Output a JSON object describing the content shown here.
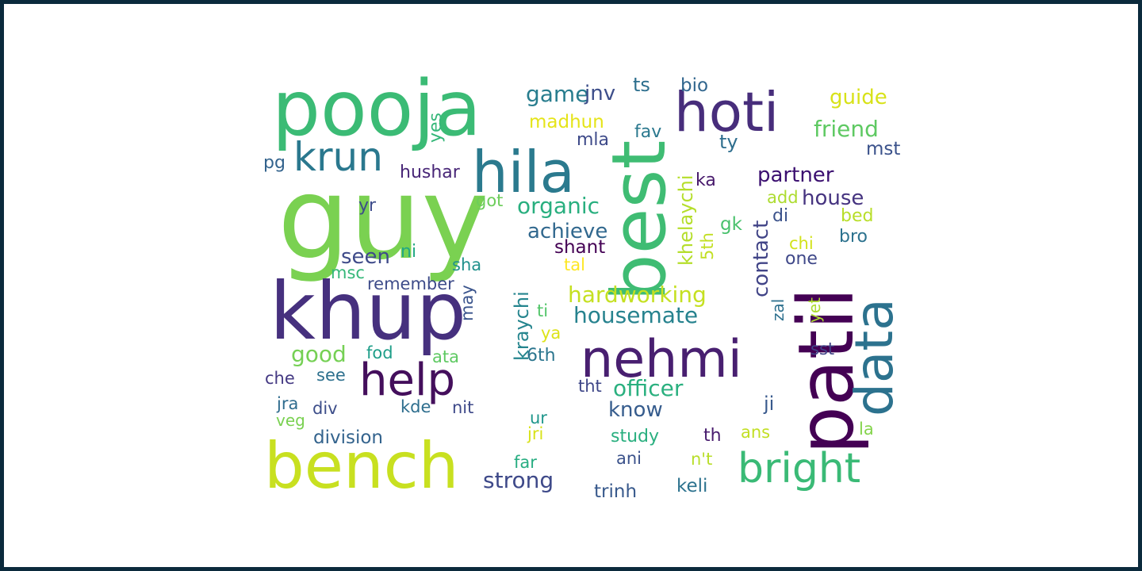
{
  "wordcloud": {
    "background": "#ffffff",
    "frame_color": "#0b2a3c",
    "words": [
      {
        "text": "guy",
        "color": "#7ad151"
      },
      {
        "text": "pooja",
        "color": "#3bbb75"
      },
      {
        "text": "khup",
        "color": "#46307e"
      },
      {
        "text": "best",
        "color": "#3fbc73"
      },
      {
        "text": "patil",
        "color": "#440154"
      },
      {
        "text": "bench",
        "color": "#c8e020"
      },
      {
        "text": "hila",
        "color": "#2b7a8e"
      },
      {
        "text": "hoti",
        "color": "#472d7b"
      },
      {
        "text": "nehmi",
        "color": "#481f70"
      },
      {
        "text": "data",
        "color": "#2c728e"
      },
      {
        "text": "krun",
        "color": "#2a788e"
      },
      {
        "text": "help",
        "color": "#440f5c"
      },
      {
        "text": "bright",
        "color": "#3aba76"
      },
      {
        "text": "game",
        "color": "#287d8e"
      },
      {
        "text": "jnv",
        "color": "#3d4e8a"
      },
      {
        "text": "ts",
        "color": "#2d6f8e"
      },
      {
        "text": "bio",
        "color": "#31668e"
      },
      {
        "text": "guide",
        "color": "#d8e219"
      },
      {
        "text": "madhun",
        "color": "#e5e419"
      },
      {
        "text": "friend",
        "color": "#5ec962"
      },
      {
        "text": "fav",
        "color": "#2a788e"
      },
      {
        "text": "mla",
        "color": "#3e4a89"
      },
      {
        "text": "ty",
        "color": "#2e6e8e"
      },
      {
        "text": "mst",
        "color": "#3b528b"
      },
      {
        "text": "yes",
        "color": "#35b779"
      },
      {
        "text": "pg",
        "color": "#33638d"
      },
      {
        "text": "hushar",
        "color": "#482677"
      },
      {
        "text": "khelaychi",
        "color": "#b5de2b"
      },
      {
        "text": "ka",
        "color": "#481a6c"
      },
      {
        "text": "partner",
        "color": "#3b0f70"
      },
      {
        "text": "organic",
        "color": "#29af7f"
      },
      {
        "text": "add",
        "color": "#addc30"
      },
      {
        "text": "house",
        "color": "#463480"
      },
      {
        "text": "yr",
        "color": "#3d4d8a"
      },
      {
        "text": "got",
        "color": "#6ccd5a"
      },
      {
        "text": "achieve",
        "color": "#31688e"
      },
      {
        "text": "contact",
        "color": "#414487"
      },
      {
        "text": "gk",
        "color": "#4ac16d"
      },
      {
        "text": "di",
        "color": "#3b528b"
      },
      {
        "text": "bed",
        "color": "#b8de29"
      },
      {
        "text": "bro",
        "color": "#2c728e"
      },
      {
        "text": "chi",
        "color": "#d2e21b"
      },
      {
        "text": "ni",
        "color": "#22a884"
      },
      {
        "text": "seen",
        "color": "#3e4a89"
      },
      {
        "text": "shant",
        "color": "#440154"
      },
      {
        "text": "5th",
        "color": "#c2df23"
      },
      {
        "text": "one",
        "color": "#3f4889"
      },
      {
        "text": "tal",
        "color": "#fde725"
      },
      {
        "text": "sha",
        "color": "#21918c"
      },
      {
        "text": "msc",
        "color": "#35b779"
      },
      {
        "text": "kraychi",
        "color": "#25858e"
      },
      {
        "text": "remember",
        "color": "#3e4c8a"
      },
      {
        "text": "hardworking",
        "color": "#c5e021"
      },
      {
        "text": "may",
        "color": "#3a548c"
      },
      {
        "text": "zal",
        "color": "#2d708e"
      },
      {
        "text": "yet",
        "color": "#addc30"
      },
      {
        "text": "housemate",
        "color": "#26828e"
      },
      {
        "text": "ti",
        "color": "#52c569"
      },
      {
        "text": "ya",
        "color": "#dde318"
      },
      {
        "text": "good",
        "color": "#75d054"
      },
      {
        "text": "fod",
        "color": "#1f9e89"
      },
      {
        "text": "ata",
        "color": "#5ec962"
      },
      {
        "text": "6th",
        "color": "#2b758e"
      },
      {
        "text": "sst",
        "color": "#414487"
      },
      {
        "text": "che",
        "color": "#443983"
      },
      {
        "text": "see",
        "color": "#2d708e"
      },
      {
        "text": "tht",
        "color": "#3f4788"
      },
      {
        "text": "officer",
        "color": "#2ab07f"
      },
      {
        "text": "ji",
        "color": "#38598c"
      },
      {
        "text": "jra",
        "color": "#2f6c8e"
      },
      {
        "text": "div",
        "color": "#3d4e8a"
      },
      {
        "text": "kde",
        "color": "#2e6e8e"
      },
      {
        "text": "nit",
        "color": "#3e4989"
      },
      {
        "text": "know",
        "color": "#365c8d"
      },
      {
        "text": "veg",
        "color": "#7ad151"
      },
      {
        "text": "ur",
        "color": "#1f968b"
      },
      {
        "text": "la",
        "color": "#84d44b"
      },
      {
        "text": "division",
        "color": "#33638d"
      },
      {
        "text": "jri",
        "color": "#d8e219"
      },
      {
        "text": "study",
        "color": "#29af7f"
      },
      {
        "text": "th",
        "color": "#481c6e"
      },
      {
        "text": "ans",
        "color": "#c2df23"
      },
      {
        "text": "far",
        "color": "#27ad81"
      },
      {
        "text": "ani",
        "color": "#3b528b"
      },
      {
        "text": "n't",
        "color": "#b8de29"
      },
      {
        "text": "strong",
        "color": "#3e4989"
      },
      {
        "text": "keli",
        "color": "#2c728e"
      },
      {
        "text": "trinh",
        "color": "#38598c"
      }
    ]
  }
}
